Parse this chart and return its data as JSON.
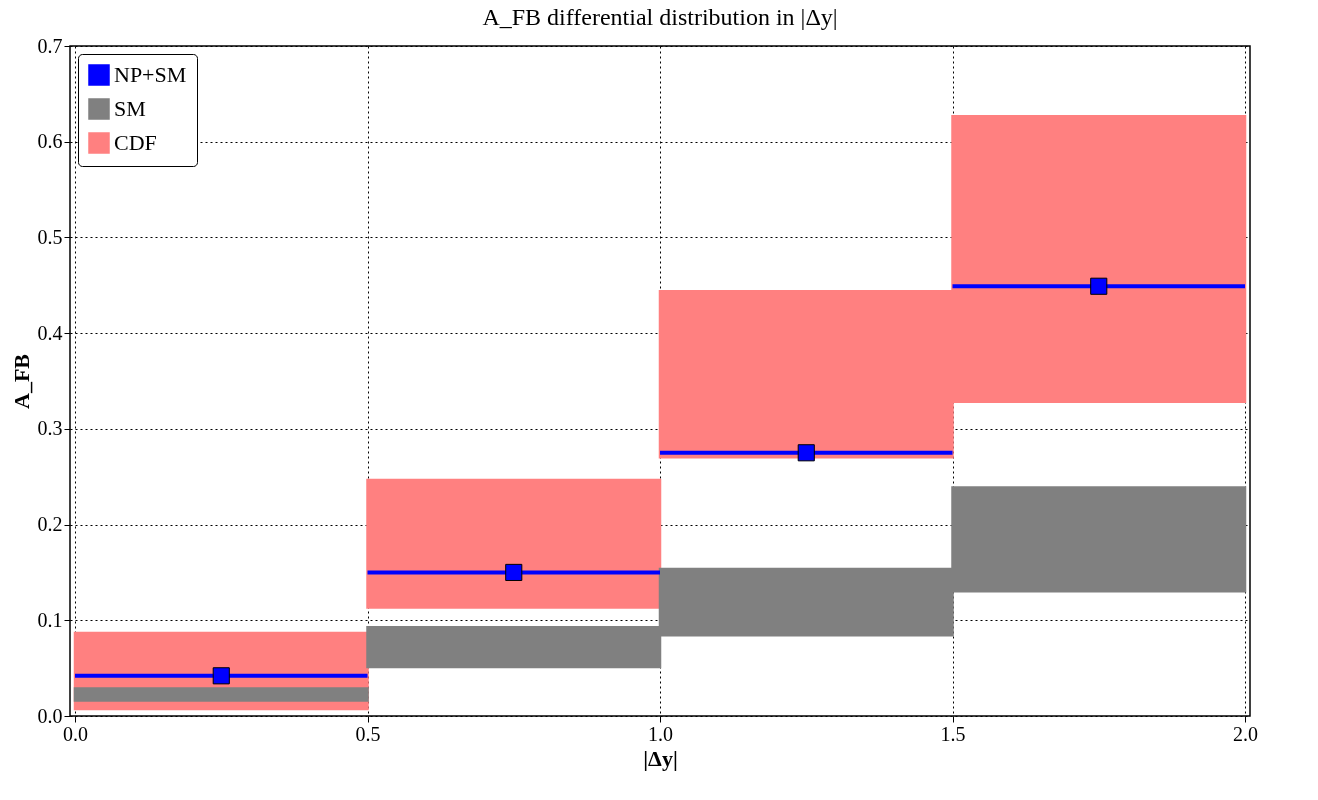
{
  "chart_data": {
    "type": "bar",
    "title": "A_FB differential distribution in |Δy|",
    "xlabel": "|Δy|",
    "ylabel": "A_FB",
    "x": [
      0.25,
      0.75,
      1.25,
      1.75
    ],
    "series": [
      {
        "name": "NP+SM",
        "type": "scatter",
        "color": "#0000ff",
        "marker": "square",
        "values": [
          0.042,
          0.15,
          0.275,
          0.449
        ],
        "xerrors": [
          0.25,
          0.25,
          0.25,
          0.25
        ]
      },
      {
        "name": "SM",
        "color": "#808080",
        "base": [
          0.015,
          0.05,
          0.083,
          0.129
        ],
        "values": [
          0.015,
          0.044,
          0.072,
          0.111
        ]
      },
      {
        "name": "CDF",
        "color": "#ff8080",
        "base": [
          0.006,
          0.112,
          0.269,
          0.327
        ],
        "values": [
          0.082,
          0.136,
          0.176,
          0.301
        ]
      }
    ],
    "xlim": [
      0,
      2
    ],
    "ylim": [
      0,
      0.7
    ],
    "xticks": [
      {
        "value": 0,
        "label": "0.0"
      },
      0.5,
      {
        "value": 1,
        "label": "1.0"
      },
      1.5,
      {
        "value": 2,
        "label": "2.0"
      }
    ],
    "yticks": [
      {
        "value": 0,
        "label": "0.0"
      },
      0.1,
      0.2,
      0.3,
      0.4,
      0.5,
      0.6,
      0.7
    ],
    "grid": true,
    "legend": "top left"
  }
}
